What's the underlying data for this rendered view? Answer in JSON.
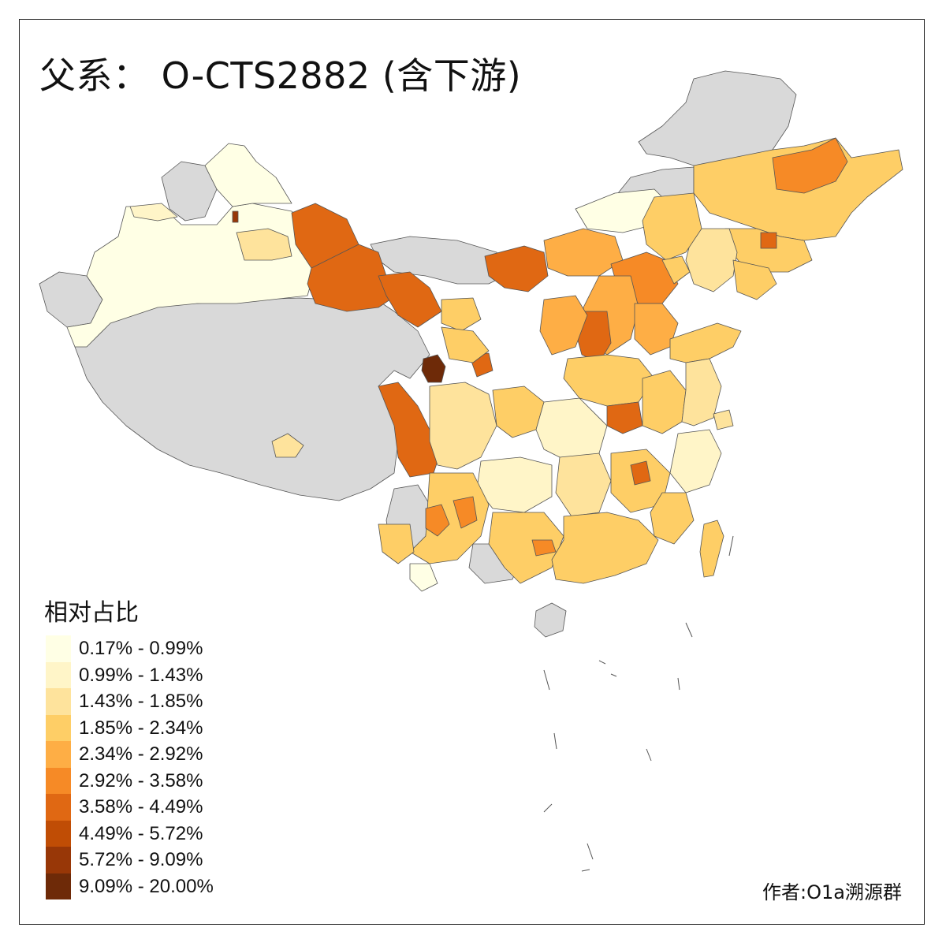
{
  "title": "父系： O-CTS2882 (含下游)",
  "legend": {
    "title": "相对占比",
    "items": [
      {
        "label": "0.17% - 0.99%",
        "color": "#ffffe5"
      },
      {
        "label": "0.99% - 1.43%",
        "color": "#fff5c8"
      },
      {
        "label": "1.43% - 1.85%",
        "color": "#fee39c"
      },
      {
        "label": "1.85% - 2.34%",
        "color": "#fece66"
      },
      {
        "label": "2.34% - 2.92%",
        "color": "#feae45"
      },
      {
        "label": "2.92% - 3.58%",
        "color": "#f68a26"
      },
      {
        "label": "3.58% - 4.49%",
        "color": "#e06813"
      },
      {
        "label": "4.49% - 5.72%",
        "color": "#c04d05"
      },
      {
        "label": "5.72% - 9.09%",
        "color": "#983707"
      },
      {
        "label": "9.09% - 20.00%",
        "color": "#6e2a08"
      }
    ]
  },
  "no_data_color": "#d9d9d9",
  "credit": "作者:O1a溯源群"
}
